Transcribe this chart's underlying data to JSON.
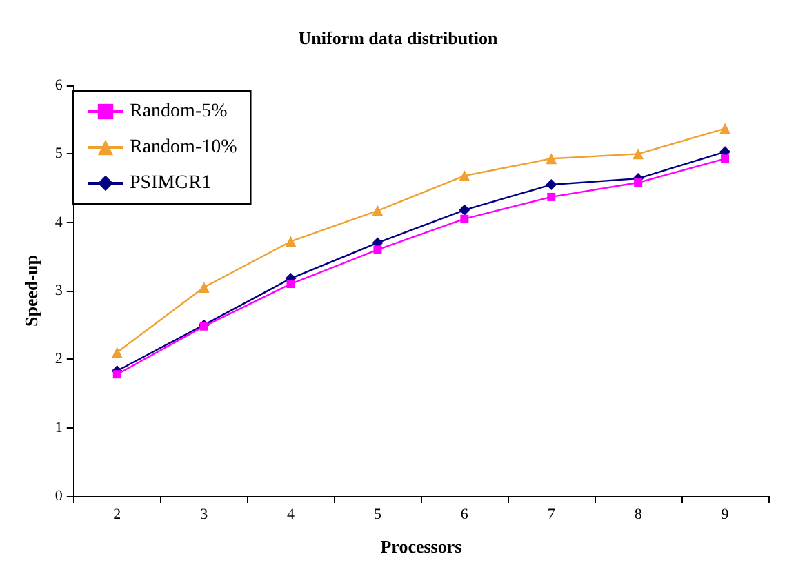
{
  "chart_data": {
    "type": "line",
    "title": "Uniform data distribution",
    "xlabel": "Processors",
    "ylabel": "Speed-up",
    "categories": [
      "2",
      "3",
      "4",
      "5",
      "6",
      "7",
      "8",
      "9"
    ],
    "series": [
      {
        "name": "Random-5%",
        "color": "#ff00ff",
        "marker": "square",
        "values": [
          1.78,
          2.48,
          3.1,
          3.6,
          4.05,
          4.37,
          4.58,
          4.93
        ]
      },
      {
        "name": "Random-10%",
        "color": "#f0a030",
        "marker": "triangle",
        "values": [
          2.1,
          3.05,
          3.72,
          4.17,
          4.68,
          4.93,
          5.0,
          5.37
        ]
      },
      {
        "name": "PSIMGR1",
        "color": "#000080",
        "marker": "diamond",
        "values": [
          1.83,
          2.5,
          3.18,
          3.7,
          4.18,
          4.55,
          4.64,
          5.03
        ]
      }
    ],
    "ylim": [
      0,
      6
    ],
    "yticks": [
      0,
      1,
      2,
      3,
      4,
      5,
      6
    ],
    "grid": false,
    "legend": "top left",
    "line_style": "solid"
  }
}
